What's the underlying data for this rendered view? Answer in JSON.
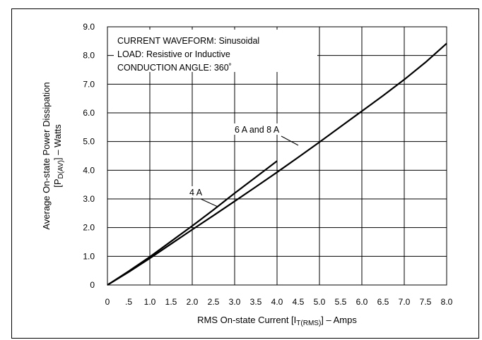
{
  "chart_data": {
    "type": "line",
    "xlabel": {
      "prefix": "RMS On-state Current [I",
      "sub": "T(RMS)",
      "suffix": "] – Amps"
    },
    "ylabel": {
      "line1": "Average On-state Power Dissipation",
      "line2_prefix": "[P",
      "line2_sub": "D(AV)",
      "line2_suffix": "] – Watts"
    },
    "xlim": [
      0,
      8.0
    ],
    "ylim": [
      0,
      9.0
    ],
    "x_ticks": [
      {
        "v": 0,
        "label": "0"
      },
      {
        "v": 0.5,
        "label": ".5"
      },
      {
        "v": 1.0,
        "label": "1.0"
      },
      {
        "v": 1.5,
        "label": "1.5"
      },
      {
        "v": 2.0,
        "label": "2.0"
      },
      {
        "v": 2.5,
        "label": "2.5"
      },
      {
        "v": 3.0,
        "label": "3.0"
      },
      {
        "v": 3.5,
        "label": "3.5"
      },
      {
        "v": 4.0,
        "label": "4.0"
      },
      {
        "v": 4.5,
        "label": "4.5"
      },
      {
        "v": 5.0,
        "label": "5.0"
      },
      {
        "v": 5.5,
        "label": "5.5"
      },
      {
        "v": 6.0,
        "label": "6.0"
      },
      {
        "v": 6.5,
        "label": "6.5"
      },
      {
        "v": 7.0,
        "label": "7.0"
      },
      {
        "v": 7.5,
        "label": "7.5"
      },
      {
        "v": 8.0,
        "label": "8.0"
      }
    ],
    "y_ticks": [
      {
        "v": 0,
        "label": "0"
      },
      {
        "v": 1.0,
        "label": "1.0"
      },
      {
        "v": 2.0,
        "label": "2.0"
      },
      {
        "v": 3.0,
        "label": "3.0"
      },
      {
        "v": 4.0,
        "label": "4.0"
      },
      {
        "v": 5.0,
        "label": "5.0"
      },
      {
        "v": 6.0,
        "label": "6.0"
      },
      {
        "v": 7.0,
        "label": "7.0"
      },
      {
        "v": 8.0,
        "label": "8.0"
      },
      {
        "v": 9.0,
        "label": "9.0"
      }
    ],
    "grid_x": [
      1,
      2,
      3,
      4,
      5,
      6,
      7
    ],
    "grid_y": [
      1,
      2,
      3,
      4,
      5,
      6,
      7,
      8
    ],
    "grid": true,
    "series": [
      {
        "name": "4 A",
        "x": [
          0,
          0.5,
          1.0,
          1.5,
          2.0,
          2.5,
          3.0,
          3.5,
          4.0
        ],
        "y": [
          0,
          0.48,
          0.98,
          1.52,
          2.06,
          2.62,
          3.2,
          3.76,
          4.32
        ]
      },
      {
        "name": "6 A and 8 A",
        "x": [
          0,
          0.5,
          1.0,
          1.5,
          2.0,
          2.5,
          3.0,
          3.5,
          4.0,
          4.5,
          5.0,
          5.5,
          6.0,
          6.5,
          7.0,
          7.5,
          8.0
        ],
        "y": [
          0,
          0.45,
          0.93,
          1.43,
          1.93,
          2.42,
          2.92,
          3.42,
          3.93,
          4.45,
          4.98,
          5.52,
          6.06,
          6.6,
          7.16,
          7.76,
          8.42
        ]
      }
    ],
    "annotations": {
      "waveform": "CURRENT WAVEFORM: Sinusoidal",
      "load": "LOAD: Resistive or Inductive",
      "angle": "CONDUCTION ANGLE: 360˚",
      "label_4a": "4 A",
      "label_68a": "6 A and 8 A"
    }
  }
}
